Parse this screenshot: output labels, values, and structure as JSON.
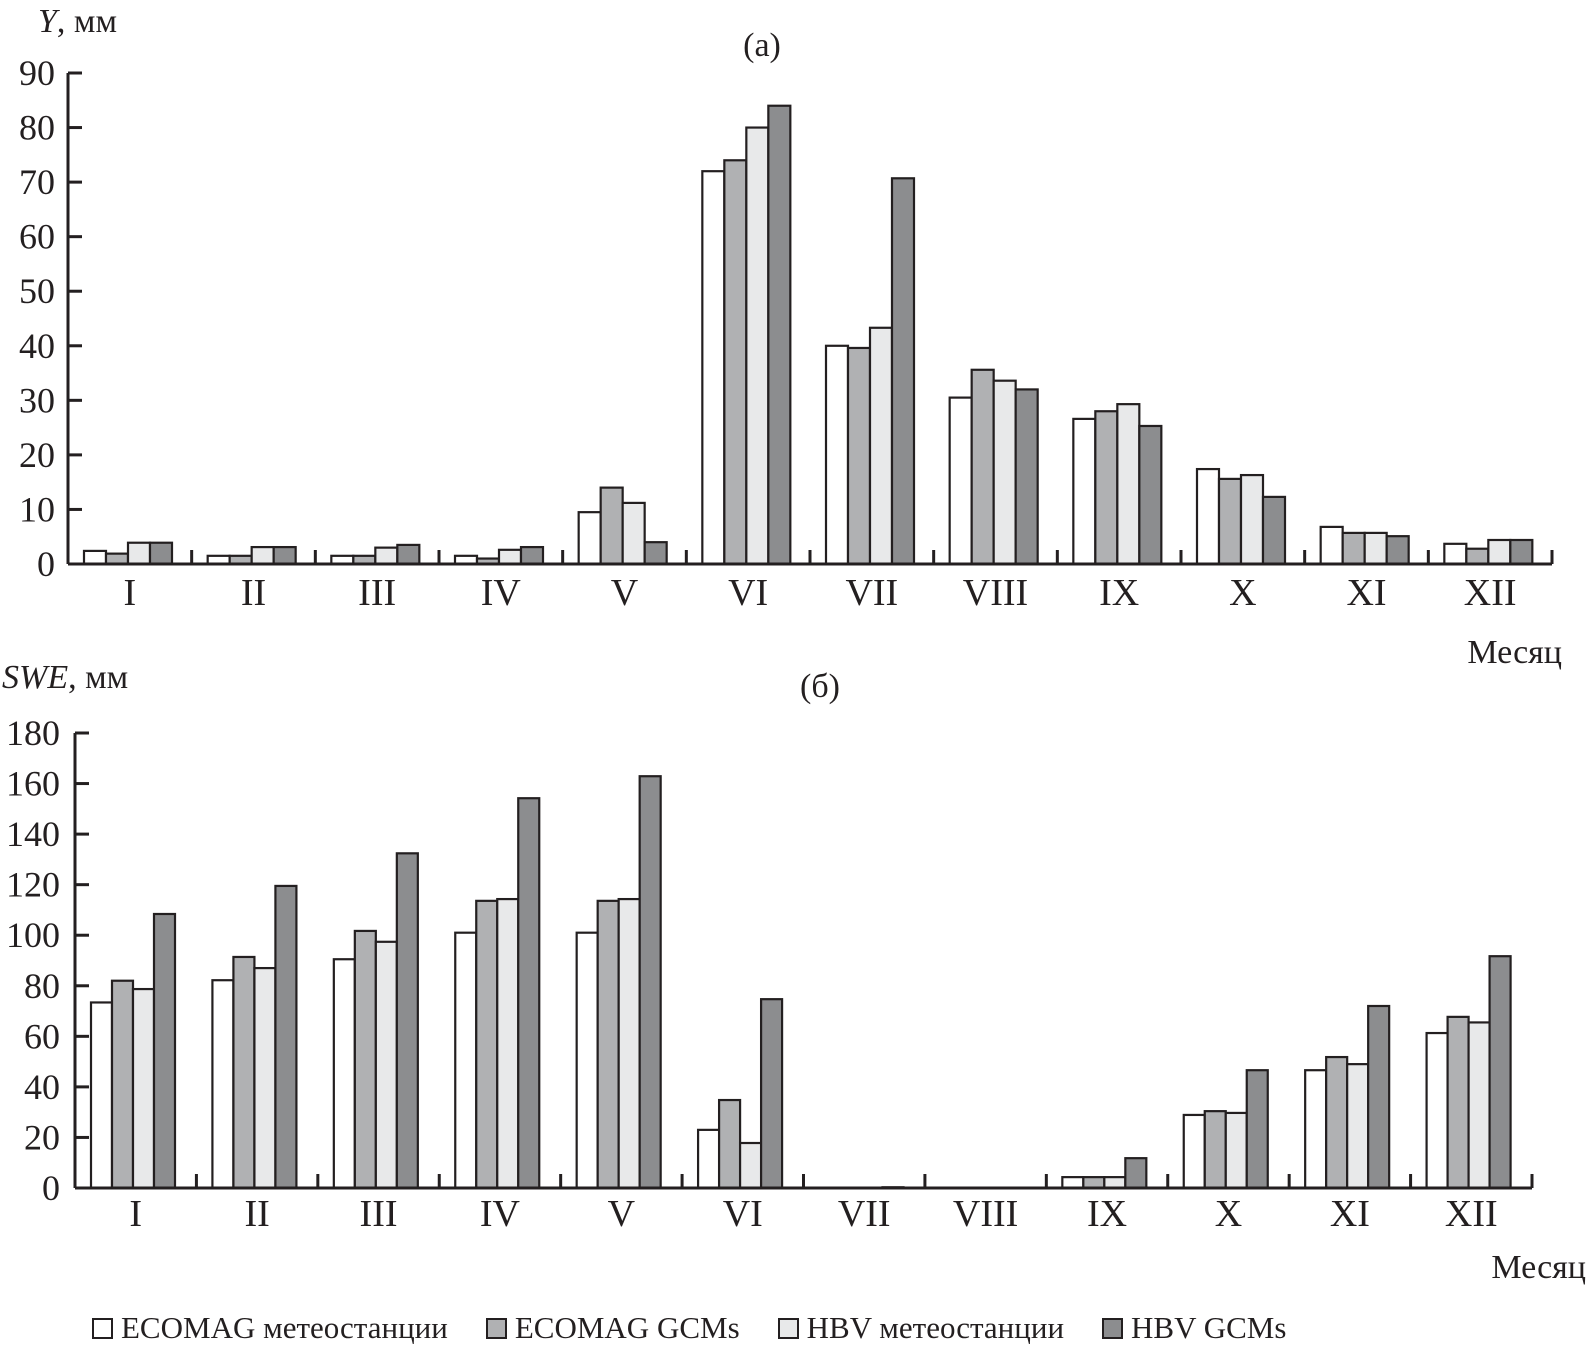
{
  "legend": [
    {
      "label": "ECOMAG метеостанции",
      "color": "#ffffff"
    },
    {
      "label": "ECOMAG GCMs",
      "color": "#b0b1b3"
    },
    {
      "label": "HBV метеостанции",
      "color": "#e8e9ea"
    },
    {
      "label": "HBV GCMs",
      "color": "#8c8d8f"
    }
  ],
  "chart_data": [
    {
      "type": "bar",
      "title": "(a)",
      "ylabel_italic": "Y",
      "ylabel_unit": ", мм",
      "xlabel": "Месяц",
      "ylim": [
        0,
        90
      ],
      "yticks": [
        0,
        10,
        20,
        30,
        40,
        50,
        60,
        70,
        80,
        90
      ],
      "categories": [
        "I",
        "II",
        "III",
        "IV",
        "V",
        "VI",
        "VII",
        "VIII",
        "IX",
        "X",
        "XI",
        "XII"
      ],
      "series": [
        {
          "name": "ECOMAG метеостанции",
          "values": [
            2.4,
            1.5,
            1.5,
            1.5,
            9.5,
            72,
            40,
            30.5,
            26.6,
            17.4,
            6.8,
            3.7
          ]
        },
        {
          "name": "ECOMAG GCMs",
          "values": [
            1.9,
            1.5,
            1.5,
            1.0,
            14,
            74,
            39.6,
            35.6,
            28,
            15.6,
            5.7,
            2.8
          ]
        },
        {
          "name": "HBV метеостанции",
          "values": [
            3.9,
            3.1,
            3.0,
            2.6,
            11.2,
            80,
            43.3,
            33.6,
            29.3,
            16.3,
            5.7,
            4.4
          ]
        },
        {
          "name": "HBV GCMs",
          "values": [
            3.9,
            3.1,
            3.5,
            3.1,
            4,
            84,
            70.7,
            32,
            25.3,
            12.3,
            5.1,
            4.4
          ]
        }
      ]
    },
    {
      "type": "bar",
      "title": "(б)",
      "ylabel_italic": "SWE",
      "ylabel_unit": ", мм",
      "xlabel": "Месяц",
      "ylim": [
        0,
        180
      ],
      "yticks": [
        0,
        20,
        40,
        60,
        80,
        100,
        120,
        140,
        160,
        180
      ],
      "categories": [
        "I",
        "II",
        "III",
        "IV",
        "V",
        "VI",
        "VII",
        "VIII",
        "IX",
        "X",
        "XI",
        "XII"
      ],
      "series": [
        {
          "name": "ECOMAG метеостанции",
          "values": [
            73.4,
            82.2,
            90.5,
            101,
            101,
            23,
            0,
            0,
            4.3,
            28.9,
            46.6,
            61.3
          ]
        },
        {
          "name": "ECOMAG GCMs",
          "values": [
            82,
            91.4,
            101.7,
            113.6,
            113.6,
            34.8,
            0,
            0,
            4.3,
            30.4,
            51.8,
            67.7
          ]
        },
        {
          "name": "HBV метеостанции",
          "values": [
            78.7,
            87,
            97.4,
            114.3,
            114.3,
            17.8,
            0,
            0,
            4.3,
            29.7,
            49,
            65.5
          ]
        },
        {
          "name": "HBV GCMs",
          "values": [
            108.4,
            119.5,
            132.4,
            154.2,
            162.9,
            74.7,
            0.3,
            0,
            11.8,
            46.6,
            72,
            91.7
          ]
        }
      ]
    }
  ]
}
